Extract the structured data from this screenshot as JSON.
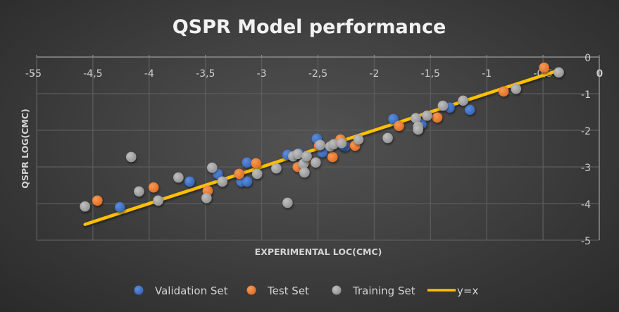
{
  "chart_data": {
    "type": "scatter",
    "title": "QSPR Model performance",
    "xlabel": "EXPERIMENTAL LOC(CMC)",
    "ylabel": "QSPR LOG(CMC)",
    "xlim": [
      -5,
      0
    ],
    "ylim": [
      -5,
      0
    ],
    "x_ticks": [
      "-5",
      "-4,5",
      "-4",
      "-3,5",
      "-3",
      "-2,5",
      "-2",
      "-1,5",
      "-1",
      "-0,5",
      "0"
    ],
    "x_tick_values": [
      -5,
      -4.5,
      -4,
      -3.5,
      -3,
      -2.5,
      -2,
      -1.5,
      -1,
      -0.5,
      0
    ],
    "y_ticks": [
      "0",
      "-1",
      "-2",
      "-3",
      "-4",
      "-5"
    ],
    "y_tick_values": [
      0,
      -1,
      -2,
      -3,
      -4,
      -5
    ],
    "left_y_label": "-5",
    "right_x_label": "0",
    "grid": true,
    "legend_position": "bottom",
    "series": [
      {
        "name": "Validation Set",
        "color": "#4472c4",
        "kind": "marker",
        "points": [
          [
            -4.26,
            -4.1
          ],
          [
            -3.64,
            -3.4
          ],
          [
            -3.39,
            -3.19
          ],
          [
            -3.13,
            -2.88
          ],
          [
            -3.18,
            -3.4
          ],
          [
            -3.13,
            -3.4
          ],
          [
            -2.77,
            -2.67
          ],
          [
            -2.67,
            -2.63
          ],
          [
            -2.51,
            -2.23
          ],
          [
            -2.46,
            -2.6
          ],
          [
            -2.26,
            -2.44
          ],
          [
            -2.28,
            -2.4
          ],
          [
            -1.83,
            -1.69
          ],
          [
            -1.58,
            -1.83
          ],
          [
            -1.33,
            -1.38
          ],
          [
            -1.15,
            -1.44
          ]
        ]
      },
      {
        "name": "Test Set",
        "color": "#ed7d31",
        "kind": "marker",
        "points": [
          [
            -4.46,
            -3.92
          ],
          [
            -3.96,
            -3.56
          ],
          [
            -3.48,
            -3.65
          ],
          [
            -3.2,
            -3.19
          ],
          [
            -3.05,
            -2.9
          ],
          [
            -2.68,
            -3.0
          ],
          [
            -2.62,
            -2.88
          ],
          [
            -2.49,
            -2.42
          ],
          [
            -2.37,
            -2.73
          ],
          [
            -2.3,
            -2.25
          ],
          [
            -2.17,
            -2.42
          ],
          [
            -1.78,
            -1.88
          ],
          [
            -1.44,
            -1.65
          ],
          [
            -0.85,
            -0.94
          ],
          [
            -0.49,
            -0.29
          ]
        ]
      },
      {
        "name": "Training Set",
        "color": "#a5a5a5",
        "kind": "marker",
        "points": [
          [
            -4.57,
            -4.08
          ],
          [
            -4.16,
            -2.73
          ],
          [
            -4.09,
            -3.67
          ],
          [
            -3.92,
            -3.92
          ],
          [
            -3.74,
            -3.29
          ],
          [
            -3.49,
            -3.85
          ],
          [
            -3.44,
            -3.02
          ],
          [
            -3.35,
            -3.4
          ],
          [
            -3.04,
            -3.19
          ],
          [
            -2.87,
            -3.04
          ],
          [
            -2.77,
            -3.98
          ],
          [
            -2.72,
            -2.71
          ],
          [
            -2.68,
            -2.65
          ],
          [
            -2.63,
            -2.92
          ],
          [
            -2.6,
            -2.71
          ],
          [
            -2.62,
            -3.15
          ],
          [
            -2.52,
            -2.88
          ],
          [
            -2.48,
            -2.4
          ],
          [
            -2.39,
            -2.44
          ],
          [
            -2.36,
            -2.38
          ],
          [
            -2.29,
            -2.35
          ],
          [
            -2.14,
            -2.25
          ],
          [
            -1.88,
            -2.21
          ],
          [
            -1.63,
            -1.67
          ],
          [
            -1.61,
            -1.9
          ],
          [
            -1.61,
            -1.98
          ],
          [
            -1.53,
            -1.6
          ],
          [
            -1.39,
            -1.33
          ],
          [
            -1.21,
            -1.19
          ],
          [
            -0.74,
            -0.87
          ],
          [
            -0.36,
            -0.42
          ]
        ]
      },
      {
        "name": "y=x",
        "color": "#ffc000",
        "kind": "line",
        "points": [
          [
            -4.57,
            -4.57
          ],
          [
            -0.36,
            -0.36
          ]
        ]
      }
    ]
  }
}
